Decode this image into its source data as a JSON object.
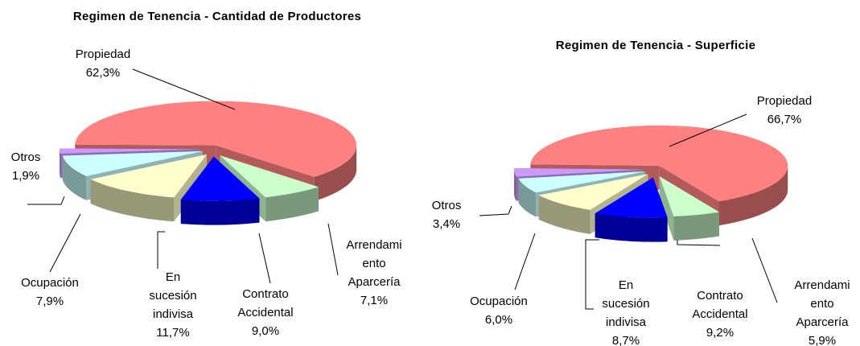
{
  "chart_data": [
    {
      "type": "pie3d",
      "title": "Regimen de Tenencia - Cantidad de Productores",
      "categories": [
        [
          "Propiedad"
        ],
        [
          "Arrendami",
          "ento",
          "Aparcería"
        ],
        [
          "Contrato",
          "Accidental"
        ],
        [
          "En",
          "sucesión",
          "indivisa"
        ],
        [
          "Ocupación"
        ],
        [
          "Otros"
        ]
      ],
      "values": [
        62.3,
        7.1,
        9.0,
        11.7,
        7.9,
        1.9
      ],
      "value_labels": [
        "62,3%",
        "7,1%",
        "9,0%",
        "11,7%",
        "7,9%",
        "1,9%"
      ],
      "colors": [
        "#ff8080",
        "#ccffcc",
        "#0000ff",
        "#ffffcc",
        "#ccffff",
        "#cc99ff"
      ]
    },
    {
      "type": "pie3d",
      "title": "Regimen de Tenencia - Superficie",
      "categories": [
        [
          "Propiedad"
        ],
        [
          "Arrendami",
          "ento",
          "Aparcería"
        ],
        [
          "Contrato",
          "Accidental"
        ],
        [
          "En",
          "sucesión",
          "indivisa"
        ],
        [
          "Ocupación"
        ],
        [
          "Otros"
        ]
      ],
      "values": [
        66.7,
        5.9,
        9.2,
        8.7,
        6.0,
        3.4
      ],
      "value_labels": [
        "66,7%",
        "5,9%",
        "9,2%",
        "8,7%",
        "6,0%",
        "3,4%"
      ],
      "colors": [
        "#ff8080",
        "#ccffcc",
        "#0000ff",
        "#ffffcc",
        "#ccffff",
        "#cc99ff"
      ]
    }
  ]
}
